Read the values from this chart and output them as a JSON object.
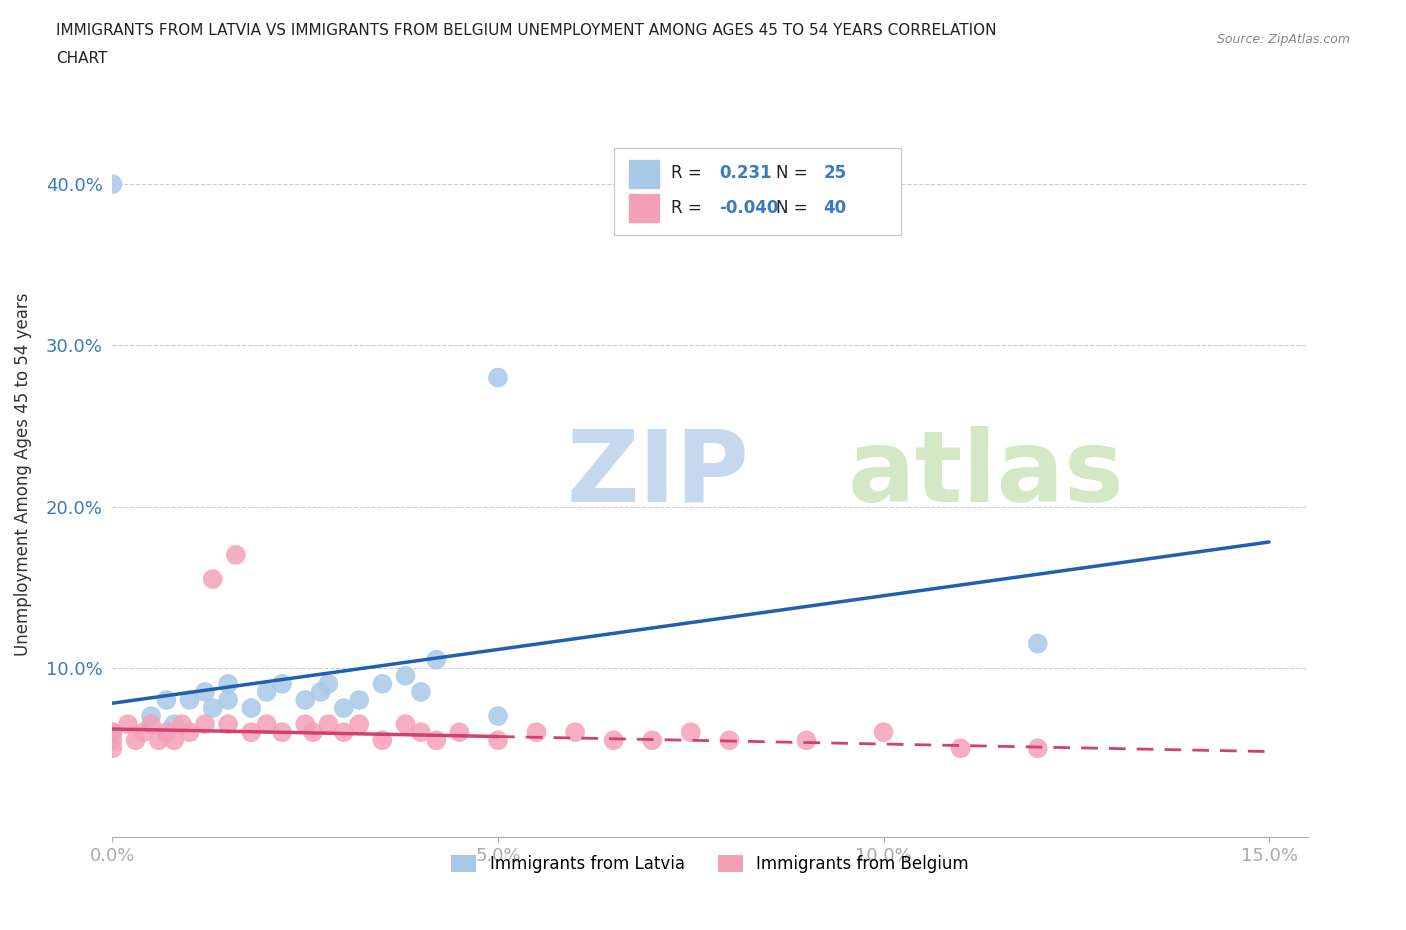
{
  "title_line1": "IMMIGRANTS FROM LATVIA VS IMMIGRANTS FROM BELGIUM UNEMPLOYMENT AMONG AGES 45 TO 54 YEARS CORRELATION",
  "title_line2": "CHART",
  "source": "Source: ZipAtlas.com",
  "ylabel": "Unemployment Among Ages 45 to 54 years",
  "xlim": [
    0.0,
    0.155
  ],
  "ylim": [
    -0.005,
    0.445
  ],
  "x_ticks": [
    0.0,
    0.05,
    0.1,
    0.15
  ],
  "x_tick_labels": [
    "0.0%",
    "5.0%",
    "10.0%",
    "15.0%"
  ],
  "y_ticks": [
    0.1,
    0.2,
    0.3,
    0.4
  ],
  "y_tick_labels": [
    "10.0%",
    "20.0%",
    "30.0%",
    "40.0%"
  ],
  "legend_label_1": "Immigrants from Latvia",
  "legend_label_2": "Immigrants from Belgium",
  "R1": 0.231,
  "N1": 25,
  "R2": -0.04,
  "N2": 40,
  "color1": "#a8c8e8",
  "color2": "#f4a0b8",
  "line_color1": "#2060b0",
  "line_color2": "#d04070",
  "watermark_zip": "ZIP",
  "watermark_atlas": "atlas",
  "watermark_color_zip": "#c5d8ee",
  "watermark_color_atlas": "#d5e8c5",
  "background_color": "#ffffff",
  "grid_color": "#cccccc",
  "latvia_x": [
    0.0,
    0.0,
    0.005,
    0.007,
    0.008,
    0.01,
    0.012,
    0.013,
    0.015,
    0.015,
    0.018,
    0.02,
    0.022,
    0.025,
    0.027,
    0.028,
    0.03,
    0.032,
    0.035,
    0.038,
    0.04,
    0.042,
    0.05,
    0.12,
    0.05
  ],
  "latvia_y": [
    0.4,
    0.06,
    0.07,
    0.08,
    0.065,
    0.08,
    0.085,
    0.075,
    0.09,
    0.08,
    0.075,
    0.085,
    0.09,
    0.08,
    0.085,
    0.09,
    0.075,
    0.08,
    0.09,
    0.095,
    0.085,
    0.105,
    0.28,
    0.115,
    0.07
  ],
  "belgium_x": [
    0.0,
    0.0,
    0.0,
    0.002,
    0.003,
    0.004,
    0.005,
    0.006,
    0.007,
    0.008,
    0.009,
    0.01,
    0.012,
    0.013,
    0.015,
    0.016,
    0.018,
    0.02,
    0.022,
    0.025,
    0.026,
    0.028,
    0.03,
    0.032,
    0.035,
    0.038,
    0.04,
    0.042,
    0.045,
    0.05,
    0.055,
    0.06,
    0.065,
    0.07,
    0.075,
    0.08,
    0.09,
    0.1,
    0.11,
    0.12
  ],
  "belgium_y": [
    0.06,
    0.055,
    0.05,
    0.065,
    0.055,
    0.06,
    0.065,
    0.055,
    0.06,
    0.055,
    0.065,
    0.06,
    0.065,
    0.155,
    0.065,
    0.17,
    0.06,
    0.065,
    0.06,
    0.065,
    0.06,
    0.065,
    0.06,
    0.065,
    0.055,
    0.065,
    0.06,
    0.055,
    0.06,
    0.055,
    0.06,
    0.06,
    0.055,
    0.055,
    0.06,
    0.055,
    0.055,
    0.06,
    0.05,
    0.05
  ],
  "line1_x0": 0.0,
  "line1_y0": 0.078,
  "line1_x1": 0.15,
  "line1_y1": 0.178,
  "line2_x0": 0.0,
  "line2_y0": 0.062,
  "line2_x1": 0.15,
  "line2_y1": 0.048
}
